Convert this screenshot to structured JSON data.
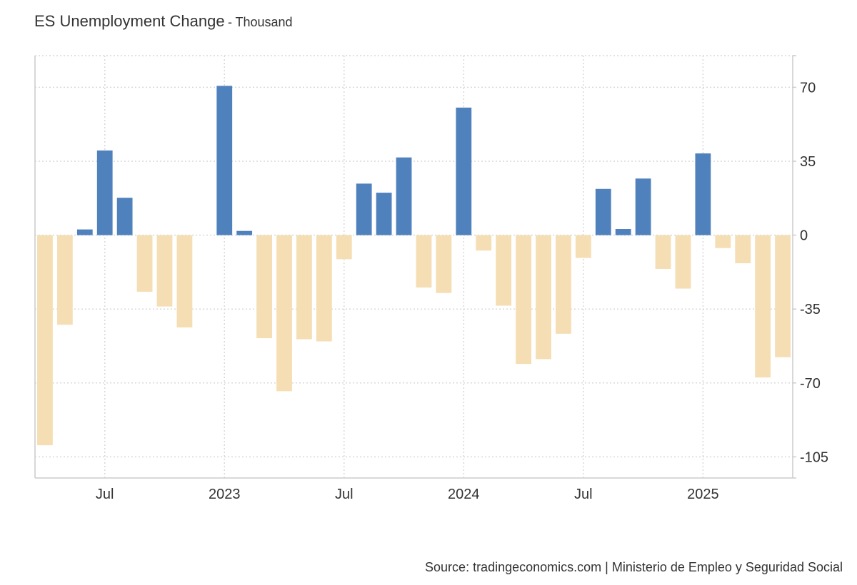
{
  "header": {
    "title": "ES Unemployment Change",
    "separator": "-",
    "unit": "Thousand"
  },
  "source": "Source: tradingeconomics.com | Ministerio de Empleo y Seguridad Social",
  "colors": {
    "positive": "#4f81bd",
    "negative": "#f5deb3",
    "grid": "#d9d9d9",
    "axis": "#cccccc",
    "text": "#333333"
  },
  "chart_data": {
    "type": "bar",
    "title": "ES Unemployment Change",
    "ylabel": "Thousand",
    "xlabel": "",
    "ylim": [
      -115,
      85
    ],
    "yticks": [
      -105,
      -70,
      -35,
      0,
      35,
      70
    ],
    "ytick_labels": [
      "-105",
      "-70",
      "-35",
      "0",
      "35",
      "70"
    ],
    "xtick_labels": [
      "Jul",
      "2023",
      "Jul",
      "2024",
      "Jul",
      "2025"
    ],
    "xtick_months": [
      "2022-07",
      "2023-01",
      "2023-07",
      "2024-01",
      "2024-07",
      "2025-01"
    ],
    "legend": "none",
    "grid": true,
    "categories": [
      "2022-04",
      "2022-05",
      "2022-06",
      "2022-07",
      "2022-08",
      "2022-09",
      "2022-10",
      "2022-11",
      "2022-12",
      "2023-01",
      "2023-02",
      "2023-03",
      "2023-04",
      "2023-05",
      "2023-06",
      "2023-07",
      "2023-08",
      "2023-09",
      "2023-10",
      "2023-11",
      "2023-12",
      "2024-01",
      "2024-02",
      "2024-03",
      "2024-04",
      "2024-05",
      "2024-06",
      "2024-07",
      "2024-08",
      "2024-09",
      "2024-10",
      "2024-11",
      "2024-12",
      "2025-01",
      "2025-02",
      "2025-03",
      "2025-04",
      "2025-05"
    ],
    "values": [
      -99.5,
      -42.4,
      2.7,
      40.1,
      17.7,
      -26.8,
      -33.8,
      -43.7,
      0,
      70.7,
      2.0,
      -48.8,
      -73.9,
      -49.3,
      -50.3,
      -11.4,
      24.4,
      20.1,
      36.8,
      -24.8,
      -27.4,
      60.4,
      -7.3,
      -33.4,
      -61.0,
      -58.7,
      -46.7,
      -10.8,
      21.9,
      2.9,
      26.8,
      -16.0,
      -25.3,
      38.7,
      -6.1,
      -13.3,
      -67.4,
      -57.8
    ]
  }
}
